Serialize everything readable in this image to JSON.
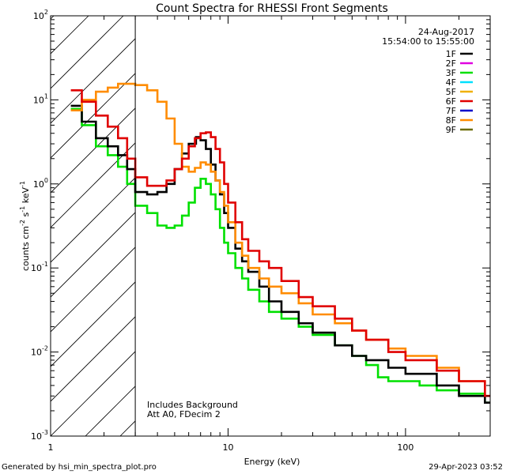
{
  "chart_data": {
    "type": "line",
    "title": "Count Spectra for RHESSI Front Segments",
    "date": "24-Aug-2017",
    "time_range": "15:54:00 to 15:55:00",
    "xlabel": "Energy (keV)",
    "ylabel_text": "counts cm",
    "ylabel_exp1": "-2",
    "ylabel_mid": " s",
    "ylabel_exp2": "-1",
    "ylabel_unit": " keV",
    "ylabel_exp3": "-1",
    "x_scale": "log",
    "y_scale": "log",
    "xlim": [
      1,
      300
    ],
    "ylim": [
      0.001,
      100
    ],
    "x_ticks": [
      {
        "value": 1,
        "label": "1"
      },
      {
        "value": 10,
        "label": "10"
      },
      {
        "value": 100,
        "label": "100"
      }
    ],
    "y_ticks": [
      {
        "value": 0.001,
        "base": "10",
        "exp": "-3"
      },
      {
        "value": 0.01,
        "base": "10",
        "exp": "-2"
      },
      {
        "value": 0.1,
        "base": "10",
        "exp": "-1"
      },
      {
        "value": 1,
        "base": "10",
        "exp": "0"
      },
      {
        "value": 10,
        "base": "10",
        "exp": "1"
      },
      {
        "value": 100,
        "base": "10",
        "exp": "2"
      }
    ],
    "excluded_region": {
      "from": 1,
      "to": 3
    },
    "annotation_line1": "Includes Background",
    "annotation_line2": "Att A0, FDecim 2",
    "legend_position": "top-right",
    "series": [
      {
        "name": "1F",
        "color": "#000000",
        "points": [
          [
            1.3,
            8.5
          ],
          [
            1.5,
            5.5
          ],
          [
            1.8,
            3.5
          ],
          [
            2.1,
            2.8
          ],
          [
            2.4,
            2.2
          ],
          [
            2.7,
            1.5
          ],
          [
            3.0,
            0.8
          ],
          [
            3.5,
            0.75
          ],
          [
            4.0,
            0.8
          ],
          [
            4.5,
            1.0
          ],
          [
            5.0,
            1.5
          ],
          [
            5.5,
            2.3
          ],
          [
            6.0,
            3.0
          ],
          [
            6.6,
            3.6
          ],
          [
            7.0,
            3.3
          ],
          [
            7.5,
            2.6
          ],
          [
            8.0,
            1.7
          ],
          [
            8.5,
            1.1
          ],
          [
            9.0,
            0.75
          ],
          [
            9.5,
            0.45
          ],
          [
            10,
            0.3
          ],
          [
            11,
            0.17
          ],
          [
            12,
            0.12
          ],
          [
            13,
            0.09
          ],
          [
            15,
            0.06
          ],
          [
            17,
            0.04
          ],
          [
            20,
            0.03
          ],
          [
            25,
            0.022
          ],
          [
            30,
            0.017
          ],
          [
            40,
            0.012
          ],
          [
            50,
            0.009
          ],
          [
            60,
            0.008
          ],
          [
            80,
            0.0065
          ],
          [
            100,
            0.0055
          ],
          [
            150,
            0.004
          ],
          [
            200,
            0.003
          ],
          [
            280,
            0.0025
          ]
        ]
      },
      {
        "name": "2F",
        "color": "#e000e0",
        "points": []
      },
      {
        "name": "3F",
        "color": "#00e000",
        "points": [
          [
            1.3,
            7.8
          ],
          [
            1.5,
            5.0
          ],
          [
            1.8,
            2.8
          ],
          [
            2.1,
            2.2
          ],
          [
            2.4,
            1.6
          ],
          [
            2.7,
            1.0
          ],
          [
            3.0,
            0.55
          ],
          [
            3.5,
            0.45
          ],
          [
            4.0,
            0.32
          ],
          [
            4.5,
            0.3
          ],
          [
            5.0,
            0.32
          ],
          [
            5.5,
            0.42
          ],
          [
            6.0,
            0.6
          ],
          [
            6.5,
            0.9
          ],
          [
            7.0,
            1.15
          ],
          [
            7.5,
            1.0
          ],
          [
            8.0,
            0.75
          ],
          [
            8.5,
            0.5
          ],
          [
            9.0,
            0.3
          ],
          [
            9.5,
            0.2
          ],
          [
            10,
            0.15
          ],
          [
            11,
            0.1
          ],
          [
            12,
            0.075
          ],
          [
            13,
            0.055
          ],
          [
            15,
            0.04
          ],
          [
            17,
            0.03
          ],
          [
            20,
            0.025
          ],
          [
            25,
            0.02
          ],
          [
            30,
            0.016
          ],
          [
            40,
            0.012
          ],
          [
            50,
            0.009
          ],
          [
            60,
            0.007
          ],
          [
            70,
            0.005
          ],
          [
            80,
            0.0045
          ],
          [
            100,
            0.0045
          ],
          [
            120,
            0.004
          ],
          [
            150,
            0.0035
          ],
          [
            200,
            0.0032
          ],
          [
            280,
            0.0025
          ]
        ]
      },
      {
        "name": "4F",
        "color": "#00e0ff",
        "points": []
      },
      {
        "name": "5F",
        "color": "#f0b000",
        "points": []
      },
      {
        "name": "6F",
        "color": "#e00000",
        "points": [
          [
            1.3,
            13
          ],
          [
            1.5,
            9.5
          ],
          [
            1.8,
            6.5
          ],
          [
            2.1,
            4.8
          ],
          [
            2.4,
            3.5
          ],
          [
            2.7,
            2.0
          ],
          [
            3.0,
            1.2
          ],
          [
            3.5,
            0.95
          ],
          [
            4.0,
            0.95
          ],
          [
            4.5,
            1.1
          ],
          [
            5.0,
            1.5
          ],
          [
            5.5,
            2.0
          ],
          [
            6.0,
            2.8
          ],
          [
            6.5,
            3.5
          ],
          [
            7.0,
            4.0
          ],
          [
            7.5,
            4.1
          ],
          [
            8.0,
            3.6
          ],
          [
            8.5,
            2.6
          ],
          [
            9.0,
            1.8
          ],
          [
            9.5,
            1.0
          ],
          [
            10,
            0.6
          ],
          [
            11,
            0.35
          ],
          [
            12,
            0.22
          ],
          [
            13,
            0.16
          ],
          [
            15,
            0.12
          ],
          [
            17,
            0.1
          ],
          [
            20,
            0.07
          ],
          [
            25,
            0.045
          ],
          [
            30,
            0.035
          ],
          [
            40,
            0.025
          ],
          [
            50,
            0.018
          ],
          [
            60,
            0.014
          ],
          [
            80,
            0.01
          ],
          [
            100,
            0.008
          ],
          [
            150,
            0.006
          ],
          [
            200,
            0.0045
          ],
          [
            280,
            0.003
          ]
        ]
      },
      {
        "name": "7F",
        "color": "#0000cc",
        "points": []
      },
      {
        "name": "8F",
        "color": "#ff8c00",
        "points": [
          [
            1.3,
            7.5
          ],
          [
            1.5,
            10
          ],
          [
            1.8,
            12.5
          ],
          [
            2.1,
            14
          ],
          [
            2.4,
            15.5
          ],
          [
            2.7,
            15.5
          ],
          [
            3.0,
            15
          ],
          [
            3.5,
            13
          ],
          [
            4.0,
            9.5
          ],
          [
            4.5,
            6
          ],
          [
            5.0,
            3.0
          ],
          [
            5.5,
            1.6
          ],
          [
            6.0,
            1.4
          ],
          [
            6.5,
            1.55
          ],
          [
            7.0,
            1.8
          ],
          [
            7.5,
            1.7
          ],
          [
            8.0,
            1.4
          ],
          [
            8.5,
            1.1
          ],
          [
            9.0,
            0.8
          ],
          [
            9.5,
            0.55
          ],
          [
            10,
            0.35
          ],
          [
            11,
            0.2
          ],
          [
            12,
            0.14
          ],
          [
            13,
            0.1
          ],
          [
            15,
            0.075
          ],
          [
            17,
            0.06
          ],
          [
            20,
            0.05
          ],
          [
            25,
            0.038
          ],
          [
            30,
            0.028
          ],
          [
            40,
            0.022
          ],
          [
            50,
            0.018
          ],
          [
            60,
            0.014
          ],
          [
            80,
            0.011
          ],
          [
            100,
            0.009
          ],
          [
            150,
            0.0065
          ],
          [
            200,
            0.0045
          ],
          [
            280,
            0.003
          ]
        ]
      },
      {
        "name": "9F",
        "color": "#6b6b00",
        "points": []
      }
    ]
  },
  "footer": {
    "left": "Generated by hsi_min_spectra_plot.pro",
    "right": "29-Apr-2023 03:52"
  }
}
